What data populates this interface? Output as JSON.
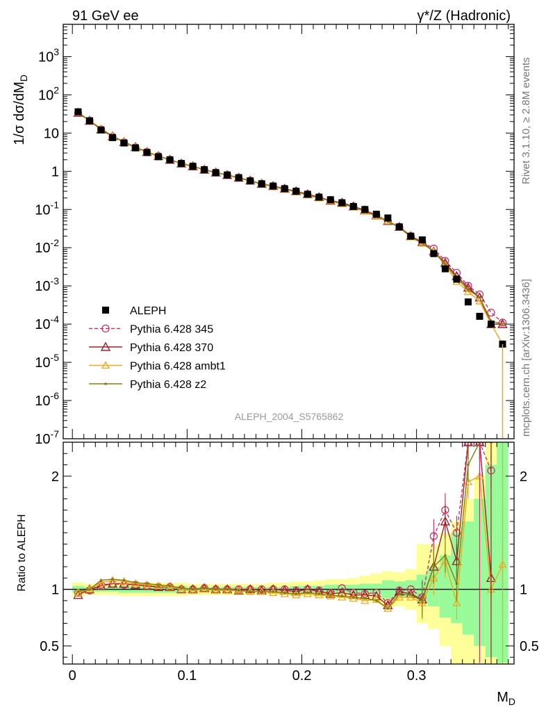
{
  "header": {
    "left_title": "91 GeV ee",
    "right_title": "γ*/Z (Hadronic)"
  },
  "side_labels": {
    "rivet": "Rivet 3.1.10, ≥ 2.8M events",
    "mcplots": "mcplots.cern.ch [arXiv:1306.3436]"
  },
  "watermark": "ALEPH_2004_S5765862",
  "colors": {
    "data": "#000000",
    "p345": "#cc3366",
    "p370": "#a0202a",
    "ambt1": "#f0a820",
    "z2": "#808010",
    "band_inner": "#98fa98",
    "band_outer": "#ffff99"
  },
  "chart_data": [
    {
      "type": "scatter",
      "panel": "main",
      "ylabel": "1/σ dσ/dM_D",
      "yscale": "log",
      "ylim": [
        1e-07,
        7000
      ],
      "xlim": [
        -0.008,
        0.385
      ],
      "y_ticks": [
        "10^-7",
        "10^-6",
        "10^-5",
        "10^-4",
        "10^-3",
        "10^-2",
        "10^-1",
        "1",
        "10",
        "10^2",
        "10^3"
      ],
      "legend": {
        "placement": "bottom-left",
        "entries": [
          "ALEPH",
          "Pythia 6.428 345",
          "Pythia 6.428 370",
          "Pythia 6.428 ambt1",
          "Pythia 6.428 z2"
        ]
      },
      "x": [
        0.005,
        0.015,
        0.025,
        0.035,
        0.045,
        0.055,
        0.065,
        0.075,
        0.085,
        0.095,
        0.105,
        0.115,
        0.125,
        0.135,
        0.145,
        0.155,
        0.165,
        0.175,
        0.185,
        0.195,
        0.205,
        0.215,
        0.225,
        0.235,
        0.245,
        0.255,
        0.265,
        0.275,
        0.285,
        0.295,
        0.305,
        0.315,
        0.325,
        0.335,
        0.345,
        0.355,
        0.365,
        0.375
      ],
      "series": [
        {
          "name": "ALEPH",
          "marker": "square",
          "values": [
            36,
            21,
            12,
            7.6,
            5.5,
            4.1,
            3.1,
            2.4,
            2.0,
            1.6,
            1.35,
            1.1,
            0.92,
            0.8,
            0.68,
            0.56,
            0.47,
            0.41,
            0.35,
            0.3,
            0.25,
            0.21,
            0.18,
            0.15,
            0.12,
            0.1,
            0.075,
            0.06,
            0.035,
            0.02,
            0.016,
            0.007,
            0.0028,
            0.0015,
            0.00038,
            0.00016,
            0.0001,
            3e-05
          ]
        },
        {
          "name": "Pythia 6.428 345",
          "marker": "open-circle",
          "dashed": true,
          "values": [
            34,
            21,
            12.5,
            8,
            5.7,
            4.2,
            3.2,
            2.5,
            2.0,
            1.6,
            1.35,
            1.1,
            0.93,
            0.8,
            0.68,
            0.57,
            0.47,
            0.41,
            0.35,
            0.3,
            0.25,
            0.21,
            0.17,
            0.15,
            0.12,
            0.095,
            0.072,
            0.05,
            0.035,
            0.02,
            0.014,
            0.0095,
            0.0045,
            0.0022,
            0.001,
            0.0006,
            0.0002,
            0.00011
          ]
        },
        {
          "name": "Pythia 6.428 370",
          "marker": "open-triangle",
          "values": [
            34,
            21,
            12.4,
            8.2,
            5.8,
            4.3,
            3.2,
            2.5,
            2.0,
            1.6,
            1.35,
            1.1,
            0.93,
            0.8,
            0.68,
            0.57,
            0.47,
            0.41,
            0.35,
            0.3,
            0.25,
            0.21,
            0.17,
            0.15,
            0.12,
            0.095,
            0.07,
            0.05,
            0.035,
            0.02,
            0.014,
            0.008,
            0.004,
            0.0018,
            0.0009,
            0.0005,
            0.0001,
            0.0001
          ]
        },
        {
          "name": "Pythia 6.428 ambt1",
          "marker": "open-triangle-small",
          "values": [
            35,
            21,
            13,
            8.3,
            5.9,
            4.3,
            3.2,
            2.5,
            2.0,
            1.6,
            1.35,
            1.1,
            0.93,
            0.8,
            0.68,
            0.56,
            0.47,
            0.4,
            0.34,
            0.29,
            0.24,
            0.2,
            0.17,
            0.14,
            0.115,
            0.09,
            0.068,
            0.05,
            0.034,
            0.019,
            0.013,
            0.008,
            0.0035,
            0.0013,
            0.0007,
            0.0004,
            0.0001,
            3e-05
          ]
        },
        {
          "name": "Pythia 6.428 z2",
          "marker": "dot",
          "values": [
            35,
            21,
            13,
            8.3,
            5.9,
            4.3,
            3.2,
            2.5,
            2.0,
            1.6,
            1.35,
            1.1,
            0.92,
            0.8,
            0.67,
            0.56,
            0.46,
            0.4,
            0.34,
            0.29,
            0.24,
            0.2,
            0.17,
            0.14,
            0.115,
            0.09,
            0.066,
            0.048,
            0.034,
            0.019,
            0.013,
            0.008,
            0.0037,
            0.0016,
            0.0008,
            0.0005,
            0.00012,
            0.0001
          ]
        }
      ]
    },
    {
      "type": "line",
      "panel": "ratio",
      "ylabel": "Ratio to ALEPH",
      "xlabel": "M_D",
      "ylim": [
        0.34,
        2.3
      ],
      "xlim": [
        -0.008,
        0.385
      ],
      "y_ticks": [
        "0.5",
        "1",
        "2"
      ],
      "x_ticks": [
        "0",
        "0.1",
        "0.2",
        "0.3"
      ],
      "x_tick_values": [
        0,
        0.1,
        0.2,
        0.3
      ],
      "band_edges": [
        0,
        0.01,
        0.02,
        0.03,
        0.04,
        0.05,
        0.06,
        0.07,
        0.08,
        0.09,
        0.1,
        0.11,
        0.12,
        0.13,
        0.14,
        0.15,
        0.16,
        0.17,
        0.18,
        0.19,
        0.2,
        0.21,
        0.22,
        0.23,
        0.24,
        0.25,
        0.26,
        0.27,
        0.28,
        0.29,
        0.3,
        0.31,
        0.32,
        0.33,
        0.34,
        0.35,
        0.36,
        0.37,
        0.38
      ],
      "band_inner": [
        [
          0.97,
          1.03
        ],
        [
          0.98,
          1.02
        ],
        [
          0.98,
          1.02
        ],
        [
          0.98,
          1.02
        ],
        [
          0.97,
          1.03
        ],
        [
          0.97,
          1.03
        ],
        [
          0.97,
          1.03
        ],
        [
          0.97,
          1.03
        ],
        [
          0.97,
          1.03
        ],
        [
          0.97,
          1.03
        ],
        [
          0.98,
          1.02
        ],
        [
          0.98,
          1.02
        ],
        [
          0.98,
          1.02
        ],
        [
          0.98,
          1.02
        ],
        [
          0.98,
          1.02
        ],
        [
          0.98,
          1.02
        ],
        [
          0.98,
          1.02
        ],
        [
          0.98,
          1.02
        ],
        [
          0.98,
          1.02
        ],
        [
          0.97,
          1.03
        ],
        [
          0.97,
          1.03
        ],
        [
          0.97,
          1.03
        ],
        [
          0.97,
          1.04
        ],
        [
          0.97,
          1.04
        ],
        [
          0.96,
          1.04
        ],
        [
          0.96,
          1.05
        ],
        [
          0.95,
          1.05
        ],
        [
          0.92,
          1.08
        ],
        [
          0.93,
          1.07
        ],
        [
          0.93,
          1.08
        ],
        [
          0.88,
          1.13
        ],
        [
          0.85,
          1.2
        ],
        [
          0.75,
          1.3
        ],
        [
          0.7,
          1.5
        ],
        [
          0.6,
          1.6
        ],
        [
          0.5,
          1.8
        ],
        [
          0.4,
          2.1
        ],
        [
          0.35,
          2.3
        ]
      ],
      "band_outer": [
        [
          0.94,
          1.06
        ],
        [
          0.95,
          1.05
        ],
        [
          0.95,
          1.05
        ],
        [
          0.95,
          1.05
        ],
        [
          0.94,
          1.06
        ],
        [
          0.94,
          1.06
        ],
        [
          0.94,
          1.06
        ],
        [
          0.94,
          1.06
        ],
        [
          0.94,
          1.06
        ],
        [
          0.94,
          1.06
        ],
        [
          0.95,
          1.05
        ],
        [
          0.95,
          1.05
        ],
        [
          0.95,
          1.05
        ],
        [
          0.95,
          1.05
        ],
        [
          0.95,
          1.05
        ],
        [
          0.95,
          1.05
        ],
        [
          0.95,
          1.05
        ],
        [
          0.95,
          1.06
        ],
        [
          0.95,
          1.06
        ],
        [
          0.94,
          1.07
        ],
        [
          0.94,
          1.07
        ],
        [
          0.93,
          1.08
        ],
        [
          0.93,
          1.09
        ],
        [
          0.92,
          1.09
        ],
        [
          0.91,
          1.1
        ],
        [
          0.9,
          1.12
        ],
        [
          0.88,
          1.14
        ],
        [
          0.84,
          1.16
        ],
        [
          0.85,
          1.15
        ],
        [
          0.82,
          1.18
        ],
        [
          0.7,
          1.4
        ],
        [
          0.65,
          1.4
        ],
        [
          0.5,
          1.5
        ],
        [
          0.34,
          1.6
        ],
        [
          0.34,
          1.8
        ],
        [
          0.34,
          2.0
        ],
        [
          0.34,
          2.3
        ],
        [
          0.34,
          2.3
        ]
      ],
      "x": [
        0.005,
        0.015,
        0.025,
        0.035,
        0.045,
        0.055,
        0.065,
        0.075,
        0.085,
        0.095,
        0.105,
        0.115,
        0.125,
        0.135,
        0.145,
        0.155,
        0.165,
        0.175,
        0.185,
        0.195,
        0.205,
        0.215,
        0.225,
        0.235,
        0.245,
        0.255,
        0.265,
        0.275,
        0.285,
        0.295,
        0.305,
        0.315,
        0.325,
        0.335,
        0.345,
        0.355,
        0.365,
        0.375
      ],
      "series": [
        {
          "name": "Pythia 6.428 345",
          "values": [
            0.97,
            0.99,
            1.04,
            1.05,
            1.04,
            1.04,
            1.03,
            1.02,
            1.02,
            1.0,
            1.0,
            1.01,
            1.0,
            1.0,
            1.0,
            1.0,
            1.0,
            1.0,
            1.0,
            0.99,
            1.0,
            0.99,
            0.97,
            1.01,
            0.97,
            0.96,
            0.97,
            0.88,
            0.99,
            1.0,
            0.93,
            1.47,
            1.7,
            1.5,
            2.3,
            2.3,
            2.05,
            null
          ]
        },
        {
          "name": "Pythia 6.428 370",
          "values": [
            0.95,
            1.0,
            1.03,
            1.05,
            1.05,
            1.04,
            1.03,
            1.02,
            1.02,
            1.0,
            1.0,
            1.01,
            1.0,
            1.0,
            0.99,
            1.0,
            0.99,
            1.0,
            0.99,
            0.98,
            1.0,
            0.98,
            0.96,
            0.97,
            0.95,
            0.95,
            0.94,
            0.86,
            0.98,
            0.96,
            0.91,
            1.2,
            1.6,
            1.25,
            2.3,
            2.3,
            1.1,
            null
          ]
        },
        {
          "name": "Pythia 6.428 ambt1",
          "values": [
            0.97,
            1.0,
            1.06,
            1.08,
            1.07,
            1.05,
            1.04,
            1.03,
            1.02,
            1.0,
            0.99,
            1.0,
            0.99,
            0.99,
            0.99,
            0.98,
            0.98,
            0.97,
            0.96,
            0.95,
            0.96,
            0.95,
            0.94,
            0.93,
            0.92,
            0.9,
            0.91,
            0.83,
            0.93,
            0.93,
            0.88,
            1.1,
            1.25,
            0.88,
            1.95,
            2.0,
            1.0,
            1.22
          ]
        },
        {
          "name": "Pythia 6.428 z2",
          "values": [
            0.98,
            1.0,
            1.08,
            1.09,
            1.08,
            1.06,
            1.05,
            1.04,
            1.03,
            1.01,
            1.0,
            1.01,
            1.0,
            1.0,
            0.99,
            0.98,
            0.98,
            0.98,
            0.97,
            0.96,
            0.97,
            0.96,
            0.95,
            0.94,
            0.93,
            0.92,
            0.9,
            0.83,
            0.96,
            0.95,
            0.9,
            1.2,
            1.3,
            1.05,
            2.1,
            2.3,
            2.3,
            null
          ]
        }
      ]
    }
  ]
}
